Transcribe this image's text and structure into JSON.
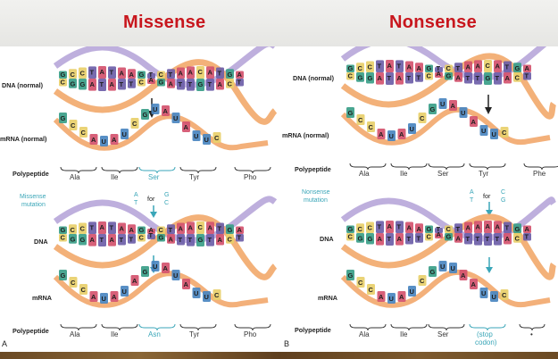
{
  "titles": {
    "left": "Missense",
    "right": "Nonsense"
  },
  "labels": {
    "dna_normal": "DNA (normal)",
    "mrna_normal": "mRNA (normal)",
    "polypeptide": "Polypeptide",
    "dna": "DNA",
    "mrna": "mRNA"
  },
  "missense": {
    "panel": "A",
    "mutation_label": [
      "Missense",
      "mutation"
    ],
    "change": {
      "from_top": "A",
      "from_bottom": "T",
      "for_word": "for",
      "to_top": "G",
      "to_bottom": "C"
    },
    "normal_aa": [
      "Ala",
      "Ile",
      "Ser",
      "Tyr",
      "Pho"
    ],
    "mutant_aa": [
      "Ala",
      "Ile",
      "Asn",
      "Tyr",
      "Pho"
    ]
  },
  "nonsense": {
    "panel": "B",
    "mutation_label": [
      "Nonsense",
      "mutation"
    ],
    "change": {
      "from_top": "A",
      "from_bottom": "T",
      "for_word": "for",
      "to_top": "C",
      "to_bottom": "G"
    },
    "normal_aa": [
      "Ala",
      "Ile",
      "Ser",
      "Tyr",
      "Phe"
    ],
    "mutant_aa": [
      "Ala",
      "Ile",
      "Ser",
      "(stop",
      "codon)",
      "•"
    ]
  },
  "base_colors": {
    "A": "#d4536e",
    "T": "#6d5ea8",
    "G": "#3a9e88",
    "C": "#e8cf6a",
    "U": "#4a86c0"
  },
  "strand_colors": {
    "orange": "#f2a96a",
    "purple": "#b7a6d9",
    "mrna": "#f3b07a"
  }
}
